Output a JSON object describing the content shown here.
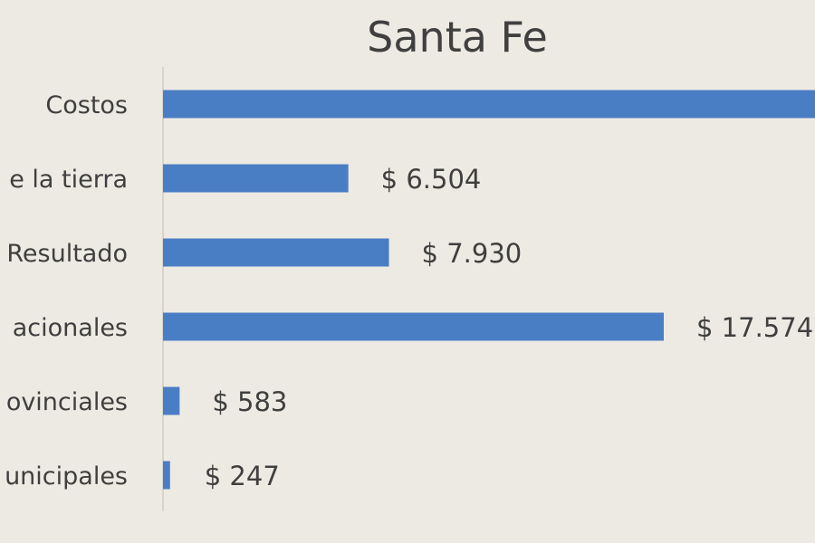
{
  "chart_data": {
    "type": "bar",
    "orientation": "horizontal",
    "title": "Santa Fe",
    "categories": [
      "Costos",
      "e la tierra",
      "Resultado",
      "acionales",
      "ovinciales",
      "unicipales"
    ],
    "values": [
      24000,
      6504,
      7930,
      17574,
      583,
      247
    ],
    "value_labels": [
      "",
      "$ 6.504",
      "$ 7.930",
      "$ 17.574",
      "$ 583",
      "$ 247"
    ],
    "bar_color": "#4a7ec4",
    "axis_color": "#d8d4cc",
    "grid": false,
    "legend": "none"
  }
}
